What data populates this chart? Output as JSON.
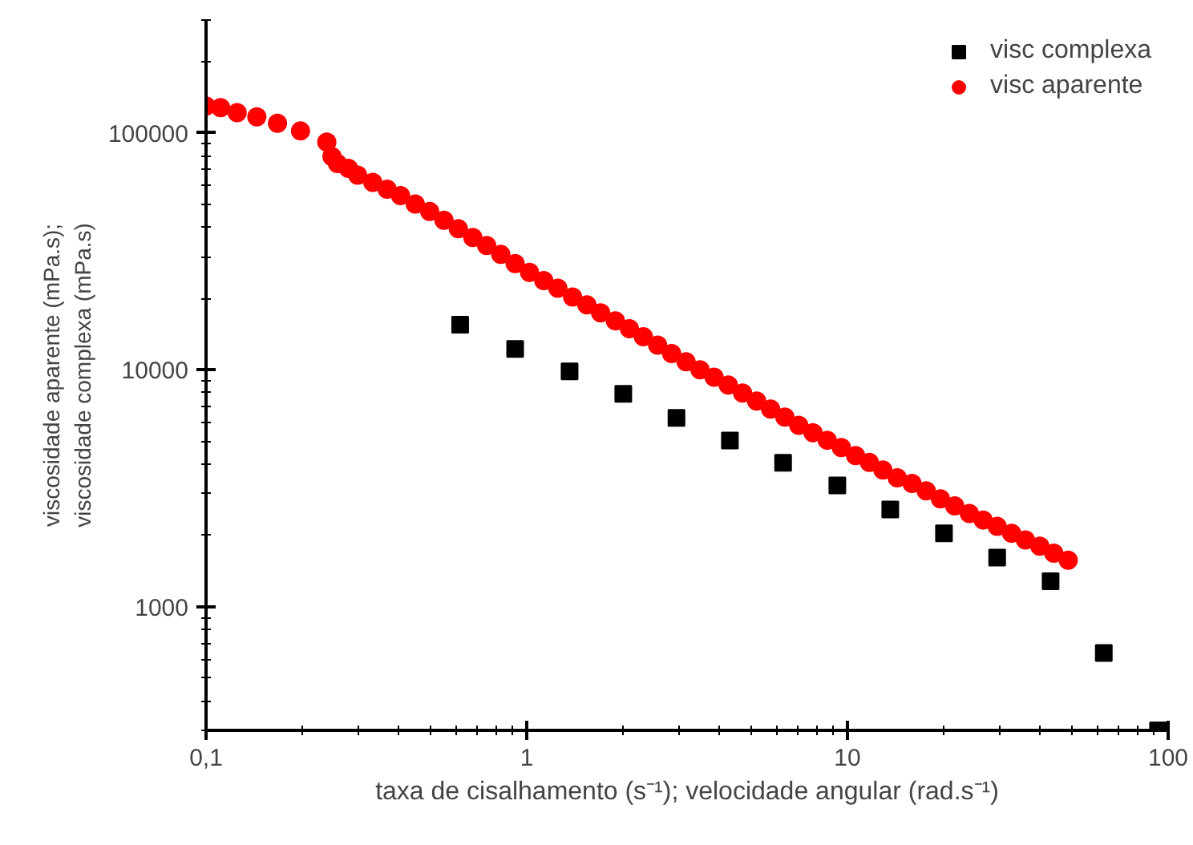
{
  "chart_data": {
    "type": "scatter",
    "xlabel": "taxa de cisalhamento (s⁻¹); velocidade angular (rad.s⁻¹)",
    "ylabel": "viscosidade aparente (mPa.s);\nviscosidade complexa (mPa.s)",
    "log": "xy",
    "grid": false,
    "legend": "top right",
    "xlim": [
      0.1,
      100
    ],
    "xticks": [
      {
        "value": 0.1,
        "label": "0,1"
      },
      1,
      10,
      100
    ],
    "ylim": [
      300,
      300000
    ],
    "yticks": [
      1000,
      10000,
      100000
    ],
    "series": [
      {
        "name": "visc complexa",
        "color": "#000000",
        "marker": "square",
        "x": [
          0.62,
          0.92,
          1.36,
          2.0,
          2.93,
          4.3,
          6.3,
          9.3,
          13.6,
          20,
          29.3,
          43,
          63,
          93
        ],
        "values": [
          15500,
          12250,
          9840,
          7910,
          6260,
          5030,
          4050,
          3250,
          2570,
          2040,
          1610,
          1280,
          636,
          300
        ]
      },
      {
        "name": "visc aparente",
        "color": "#ff0000",
        "marker": "circle",
        "x": [
          0.1,
          0.111,
          0.125,
          0.144,
          0.167,
          0.197,
          0.238,
          0.247,
          0.257,
          0.278,
          0.297,
          0.331,
          0.367,
          0.404,
          0.449,
          0.498,
          0.552,
          0.612,
          0.679,
          0.75,
          0.83,
          0.92,
          1.02,
          1.13,
          1.25,
          1.39,
          1.54,
          1.7,
          1.89,
          2.09,
          2.31,
          2.56,
          2.83,
          3.14,
          3.47,
          3.84,
          4.25,
          4.71,
          5.21,
          5.76,
          6.38,
          7.05,
          7.81,
          8.65,
          9.57,
          10.6,
          11.7,
          12.9,
          14.3,
          15.9,
          17.6,
          19.5,
          21.6,
          24.0,
          26.5,
          29.3,
          32.5,
          35.9,
          39.8,
          44.0,
          48.8
        ],
        "values": [
          130000,
          128000,
          122000,
          117000,
          110000,
          102000,
          91500,
          79500,
          74300,
          70900,
          66400,
          61900,
          57900,
          54400,
          50100,
          46600,
          42800,
          39400,
          36200,
          33500,
          30700,
          28100,
          25800,
          23800,
          22100,
          20300,
          18800,
          17400,
          16100,
          14900,
          13800,
          12700,
          11700,
          10800,
          10000,
          9310,
          8620,
          7970,
          7380,
          6820,
          6310,
          5830,
          5420,
          5040,
          4690,
          4340,
          4060,
          3770,
          3500,
          3310,
          3080,
          2850,
          2660,
          2470,
          2320,
          2180,
          2040,
          1910,
          1800,
          1680,
          1570
        ]
      }
    ]
  }
}
